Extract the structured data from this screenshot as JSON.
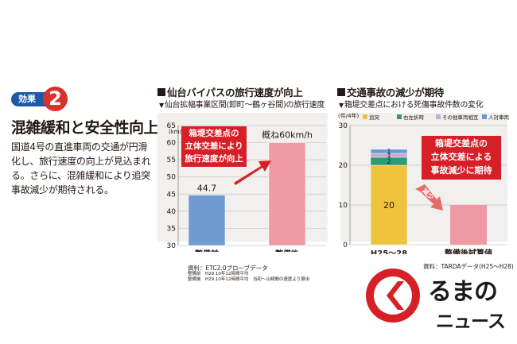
{
  "left": {
    "badge_label": "効果",
    "badge_number": "2",
    "heading": "混雑緩和と安全性向上",
    "description": "国道4号の直進車両の交通が円滑化し、旅行速度の向上が見込まれる。さらに、混雑緩和により追突事故減少が期待される。"
  },
  "colors": {
    "before_bar": "#6f9bd1",
    "after_bar": "#ef9aa3",
    "rear_end": "#f0c33f",
    "right_turn": "#2f9a73",
    "other_vehicle": "#c9a8d4",
    "pedestrian": "#6a9ad3",
    "callout": "#d71f28",
    "arrow": "#d71f28",
    "arrow_light": "#e86a6a",
    "badge_blue": "#1c5aa8",
    "logo_red": "#d71f28"
  },
  "chart_data": [
    {
      "type": "bar",
      "title": "仙台バイパスの旅行速度が向上",
      "subtitle": "仙台拡幅事業区間(卸町～鶴ヶ谷間)の旅行速度",
      "ylabel": "(km/h)",
      "ylim": [
        30,
        65
      ],
      "yticks": [
        "30",
        "35",
        "40",
        "45",
        "50",
        "55",
        "60",
        "65"
      ],
      "grid": true,
      "categories": [
        "整備前",
        "整備後"
      ],
      "values": [
        44.7,
        60
      ],
      "data_labels": [
        "44.7",
        "概ね60km/h"
      ],
      "callout": [
        "箱堤交差点の",
        "立体交差により",
        "旅行速度が向上"
      ],
      "source": "資料：ETC2.0プローブデータ",
      "notes": [
        "整備前　H29.10年12時間平均",
        "整備後　H29.10年12時間平均　当初～山崎間の速度より算出"
      ]
    },
    {
      "type": "bar",
      "stacked": true,
      "title": "交通事故の減少が期待",
      "subtitle": "箱堤交差点における死傷事故件数の変化",
      "ylabel": "(件/4年)",
      "ylim": [
        0,
        30
      ],
      "yticks": [
        "0",
        "10",
        "20",
        "30"
      ],
      "grid": true,
      "legend_position": "top",
      "categories": [
        "H25～28",
        "整備後試算値"
      ],
      "series": [
        {
          "name": "追突",
          "values": [
            20,
            null
          ]
        },
        {
          "name": "右左折時",
          "values": [
            2,
            null
          ]
        },
        {
          "name": "その他車両相互",
          "values": [
            1,
            null
          ]
        },
        {
          "name": "人対車両",
          "values": [
            1,
            null
          ]
        }
      ],
      "estimate_value": 10,
      "segment_labels": [
        "20",
        "2",
        "1",
        "1"
      ],
      "arrow_label": "減少",
      "callout": [
        "箱堤交差点の",
        "立体交差による",
        "事故減少に期待"
      ],
      "source": "資料：TARDAデータ(H25～H28)"
    }
  ],
  "logo": {
    "line1": "るまの",
    "line2": "ニュース"
  }
}
